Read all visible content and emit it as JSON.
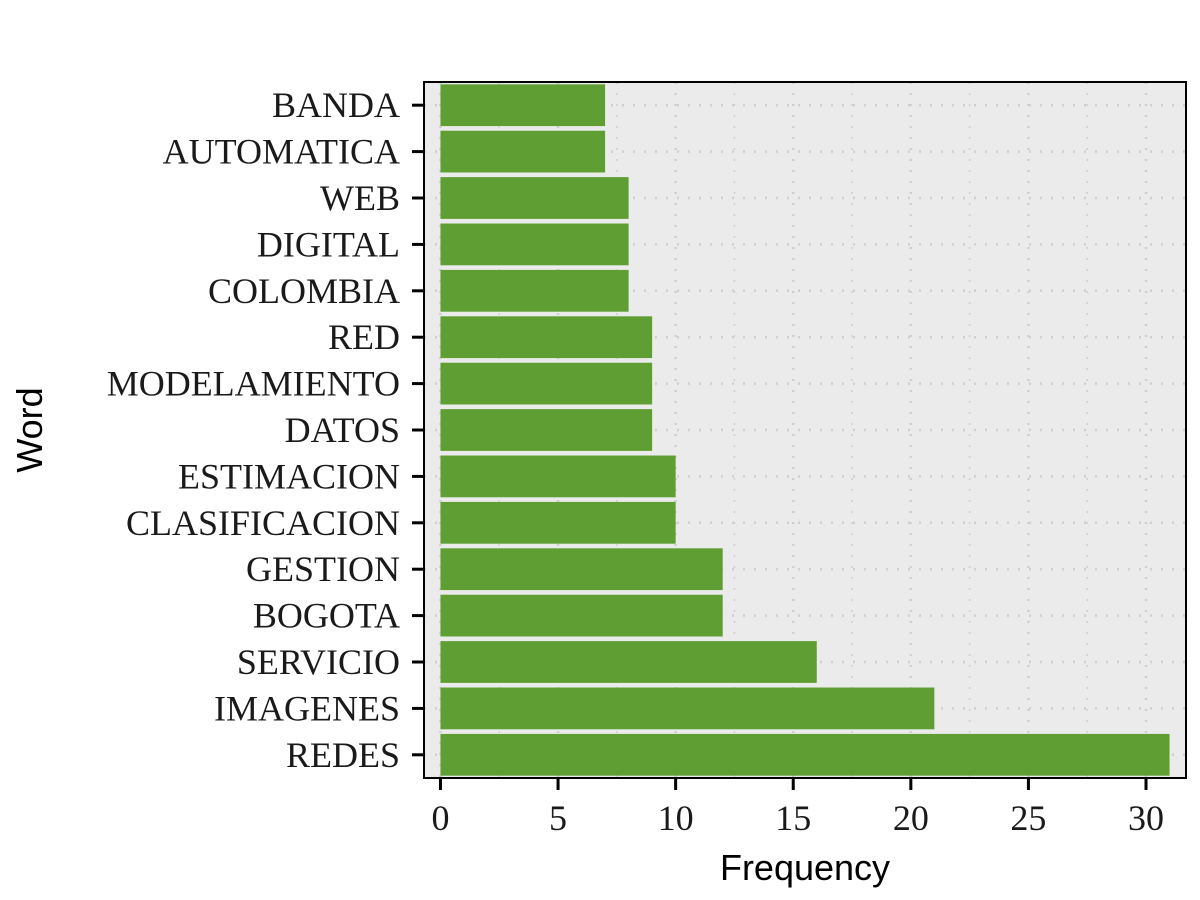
{
  "chart_data": {
    "type": "bar",
    "orientation": "horizontal",
    "xlabel": "Frequency",
    "ylabel": "Word",
    "categories": [
      "REDES",
      "IMAGENES",
      "SERVICIO",
      "BOGOTA",
      "GESTION",
      "CLASIFICACION",
      "ESTIMACION",
      "DATOS",
      "MODELAMIENTO",
      "RED",
      "COLOMBIA",
      "DIGITAL",
      "WEB",
      "AUTOMATICA",
      "BANDA"
    ],
    "values": [
      31,
      21,
      16,
      12,
      12,
      10,
      10,
      9,
      9,
      9,
      8,
      8,
      8,
      7,
      7
    ],
    "xlim": [
      -0.7,
      31.7
    ],
    "xticks": [
      0,
      5,
      10,
      15,
      20,
      25,
      30
    ],
    "xtick_labels": [
      "0",
      "5",
      "10",
      "15",
      "20",
      "25",
      "30"
    ],
    "grid": "dotted",
    "legend": "none",
    "colors": {
      "bar": "#5e9e32",
      "panel_background": "#ebebeb",
      "grid": "#cfcfcf",
      "axis": "#000000"
    }
  }
}
